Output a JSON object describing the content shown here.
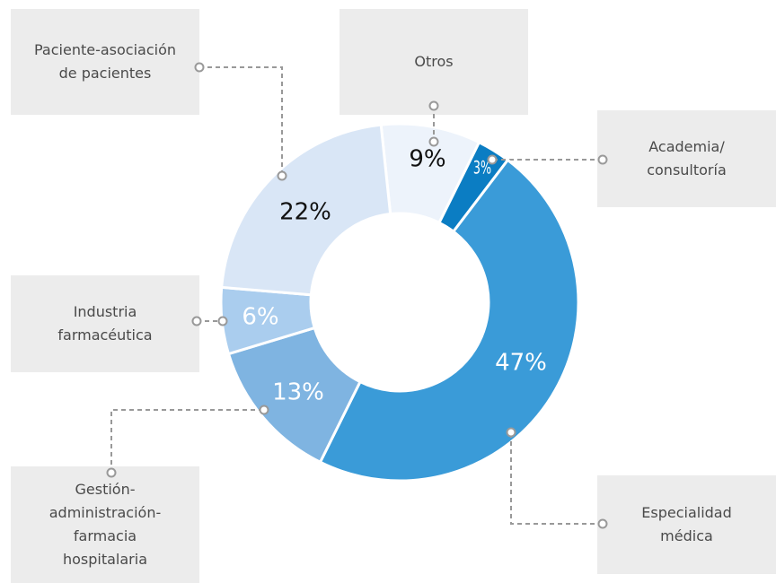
{
  "chart_data": {
    "type": "donut",
    "categories": [
      "Otros",
      "Academia/\nconsultoría",
      "Especialidad\nmédica",
      "Gestión-\nadministración-\nfarmacia\nhospitalaria",
      "Industria\nfarmacéutica",
      "Paciente-asociación\nde pacientes"
    ],
    "values": [
      9,
      3,
      47,
      13,
      6,
      22
    ],
    "value_labels": [
      "9%",
      "3%",
      "47%",
      "13%",
      "6%",
      "22%"
    ],
    "colors": [
      "#edf3fb",
      "#0b7dc3",
      "#3a9bd8",
      "#7fb4e1",
      "#aacdee",
      "#d9e6f6"
    ]
  }
}
